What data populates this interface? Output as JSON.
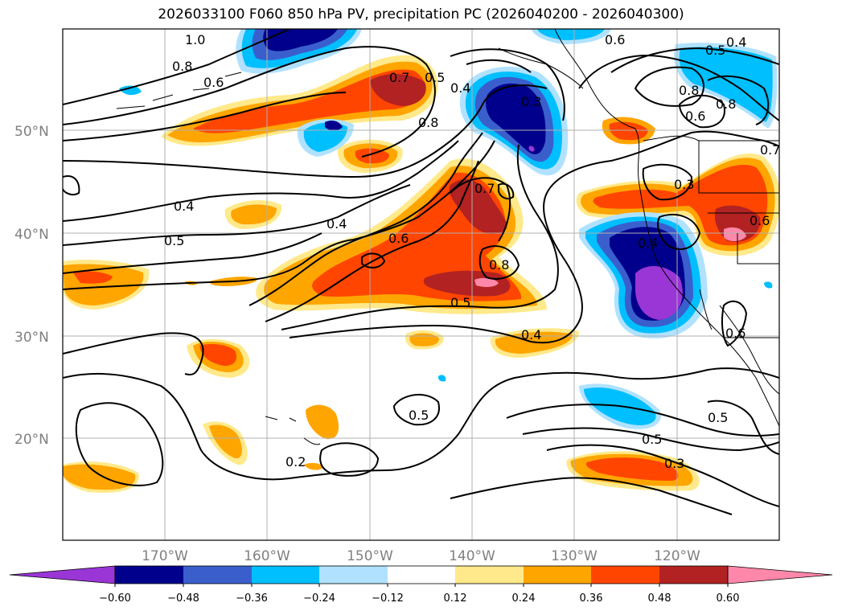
{
  "title": "2026033100 F060 850 hPa PV, precipitation PC (2026040200 - 2026040300)",
  "lat_labels": [
    "50°N",
    "40°N",
    "30°N",
    "20°N"
  ],
  "lon_labels": [
    "170°W",
    "160°W",
    "150°W",
    "140°W",
    "130°W",
    "120°W"
  ],
  "colorbar": {
    "ticks": [
      "−0.60",
      "−0.48",
      "−0.36",
      "−0.24",
      "−0.12",
      "0.12",
      "0.24",
      "0.36",
      "0.48",
      "0.60"
    ],
    "colors": [
      "#9a36d6",
      "#00008c",
      "#3a5fcd",
      "#00bfff",
      "#b0e2ff",
      "#ffffff",
      "#ffe98a",
      "#ffa500",
      "#ff4500",
      "#b22222",
      "#ff88aa"
    ]
  },
  "contour_labels": [
    "1.0",
    "0.8",
    "0.6",
    "0.7",
    "0.5",
    "0.4",
    "0.3",
    "0.8",
    "0.6",
    "0.5",
    "0.4",
    "0.8",
    "0.6",
    "0.8",
    "0.7",
    "0.4",
    "0.4",
    "0.5",
    "0.6",
    "0.7",
    "0.8",
    "0.5",
    "0.4",
    "0.3",
    "0.6",
    "0.4",
    "0.5",
    "0.2",
    "0.5",
    "0.3",
    "0.5",
    "0.6"
  ]
}
